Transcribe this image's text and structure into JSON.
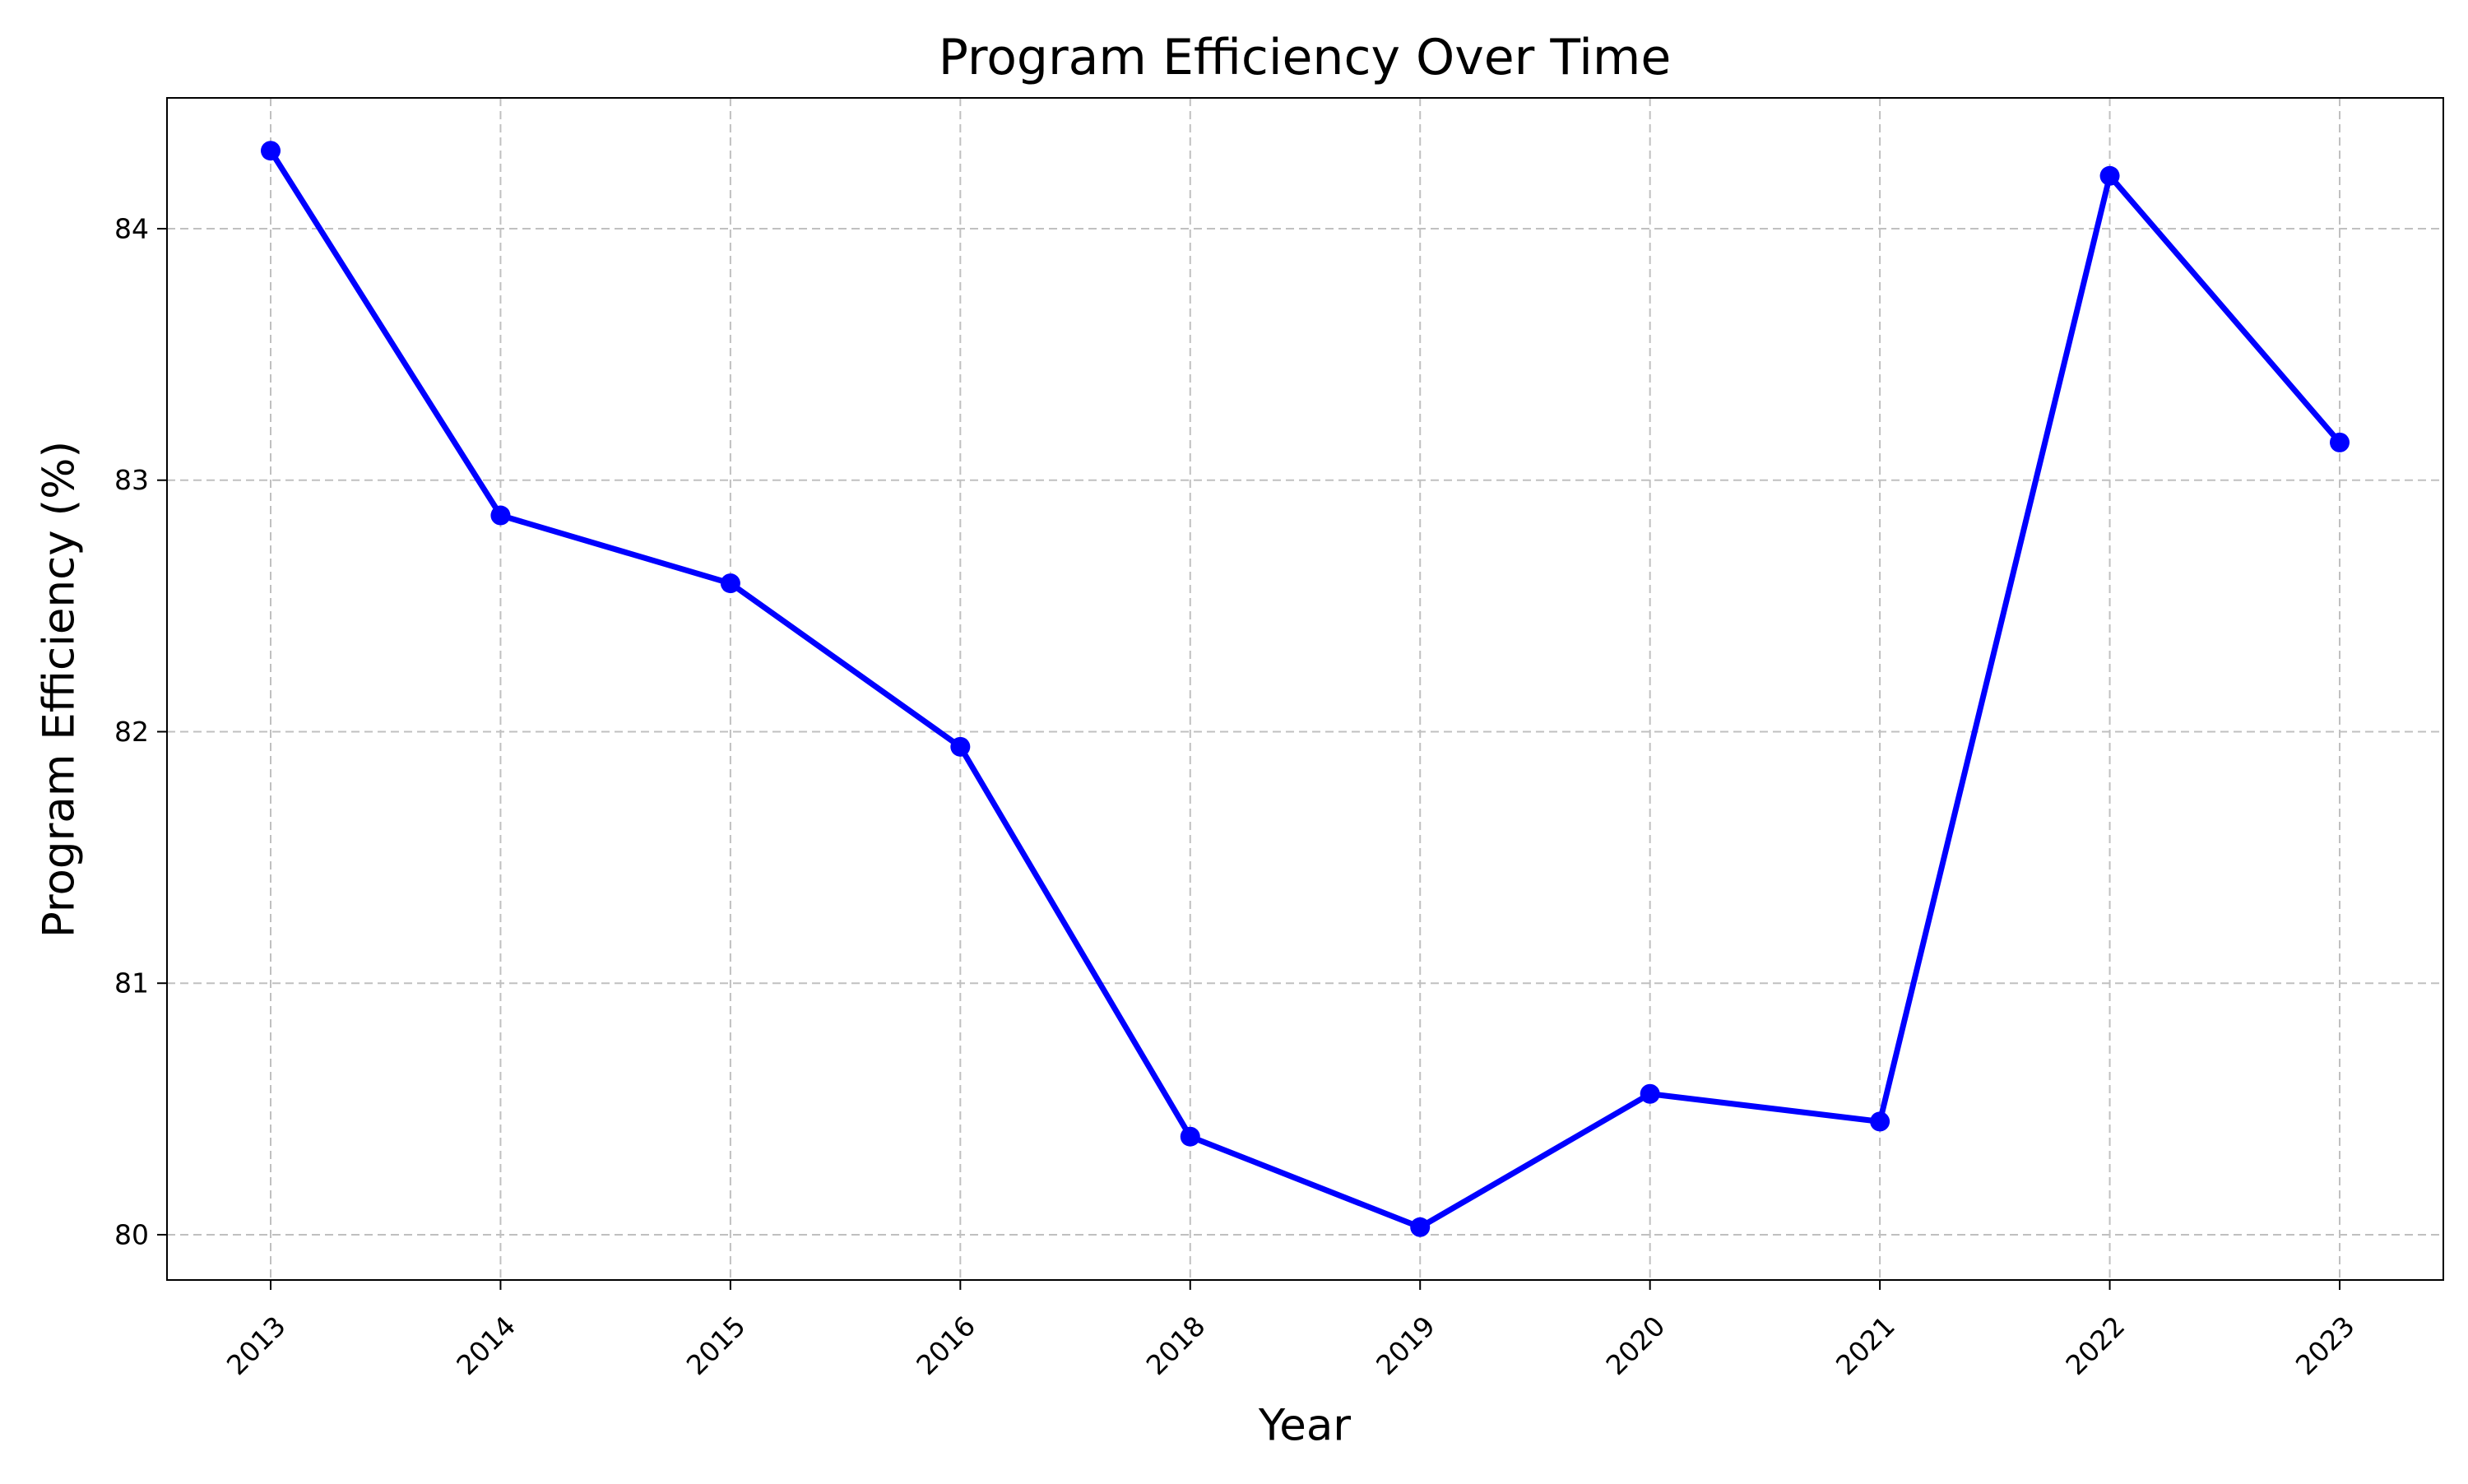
{
  "chart_data": {
    "type": "line",
    "title": "Program Efficiency Over Time",
    "xlabel": "Year",
    "ylabel": "Program Efficiency (%)",
    "categories": [
      "2013",
      "2014",
      "2015",
      "2016",
      "2018",
      "2019",
      "2020",
      "2021",
      "2022",
      "2023"
    ],
    "series": [
      {
        "values": [
          84.31,
          82.86,
          82.59,
          81.94,
          80.39,
          80.03,
          80.56,
          80.45,
          84.21,
          83.15
        ],
        "color": "#0000ff",
        "marker": "circle"
      }
    ],
    "ylim": [
      79.82,
      84.52
    ],
    "yticks": [
      80,
      81,
      82,
      83,
      84
    ],
    "grid": true,
    "grid_style": "dashed",
    "xtick_rotation_deg": 45
  }
}
